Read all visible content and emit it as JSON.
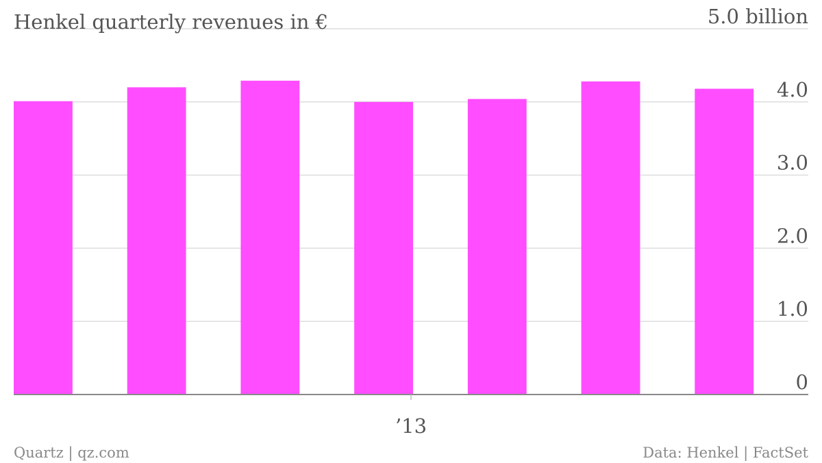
{
  "chart_data": {
    "type": "bar",
    "title": "Henkel quarterly revenues in €",
    "categories": [
      "",
      "",
      "",
      "",
      "",
      "",
      ""
    ],
    "values": [
      4.01,
      4.2,
      4.29,
      4.0,
      4.04,
      4.28,
      4.18
    ],
    "ylim": [
      0,
      5.0
    ],
    "y_ticks": [
      {
        "value": 0,
        "label": "0"
      },
      {
        "value": 1.0,
        "label": "1.0"
      },
      {
        "value": 2.0,
        "label": "2.0"
      },
      {
        "value": 3.0,
        "label": "3.0"
      },
      {
        "value": 4.0,
        "label": "4.0"
      },
      {
        "value": 5.0,
        "label": "5.0 billion"
      }
    ],
    "x_ticks": [
      {
        "position": 3.5,
        "label": "’13"
      }
    ],
    "y_axis_side": "right",
    "grid": true,
    "bar_color": "#ff4dff"
  },
  "footer": {
    "source_left": "Quartz | qz.com",
    "source_right": "Data: Henkel | FactSet"
  }
}
